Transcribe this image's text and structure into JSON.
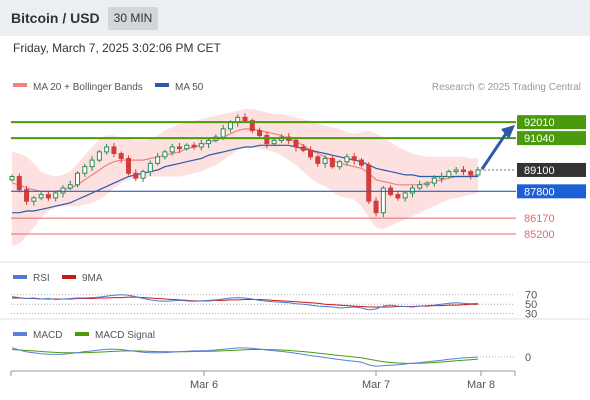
{
  "header": {
    "title": "Bitcoin / USD",
    "timeframe": "30 MIN"
  },
  "date_time": "Friday, March 7, 2025 3:02:06 PM CET",
  "legend": {
    "ma20": "MA 20 + Bollinger Bands",
    "ma50": "MA 50",
    "credit": "Research © 2025 Trading Central",
    "rsi": "RSI",
    "rsi_ma": "9MA",
    "macd": "MACD",
    "macd_signal": "MACD Signal"
  },
  "colors": {
    "resistance": "#4a9a0e",
    "pivot": "#1f5fd6",
    "support": "#e66b6b",
    "last_price": "#333333",
    "ma20": "#f08080",
    "ma50": "#2d5aa8",
    "bollinger": "#fde0e0",
    "candle_up": "#2e8b57",
    "candle_down": "#d23c3c",
    "rsi": "#4f78d0",
    "rsi_ma": "#c81818",
    "macd": "#5b80d8",
    "macd_signal": "#4a9a0e",
    "arrow": "#2d5aa8"
  },
  "chart_data": [
    {
      "type": "candlestick",
      "panel": "price",
      "y_unit": "USD",
      "ylim": [
        83500,
        93600
      ],
      "x_ticks": [
        "Mar 6",
        "Mar 7",
        "Mar 8"
      ],
      "levels": [
        {
          "label": "92010",
          "value": 92010,
          "kind": "resistance"
        },
        {
          "label": "91040",
          "value": 91040,
          "kind": "resistance"
        },
        {
          "label": "89100",
          "value": 89100,
          "kind": "last_price"
        },
        {
          "label": "87800",
          "value": 87800,
          "kind": "pivot"
        },
        {
          "label": "86170",
          "value": 86170,
          "kind": "support"
        },
        {
          "label": "85200",
          "value": 85200,
          "kind": "support"
        }
      ],
      "arrow": "up",
      "close": [
        88700,
        87900,
        87200,
        87400,
        87600,
        87400,
        87700,
        88000,
        88200,
        88900,
        89300,
        89700,
        90200,
        90500,
        90100,
        89800,
        88900,
        88600,
        89000,
        89500,
        89900,
        90200,
        90500,
        90400,
        90600,
        90500,
        90700,
        90900,
        91100,
        91600,
        92000,
        92300,
        92100,
        91500,
        91200,
        90700,
        90900,
        91100,
        90900,
        90500,
        90300,
        89900,
        89500,
        89800,
        89300,
        89600,
        89900,
        89700,
        89400,
        87200,
        86500,
        88000,
        87600,
        87400,
        87700,
        88000,
        88200,
        88300,
        88600,
        88700,
        89000,
        89100,
        89000,
        88800,
        89100
      ],
      "ma20": [
        88300,
        88200,
        88000,
        87900,
        87800,
        87800,
        87800,
        87900,
        88000,
        88200,
        88500,
        88800,
        89100,
        89400,
        89600,
        89700,
        89700,
        89700,
        89700,
        89800,
        89900,
        90000,
        90100,
        90200,
        90400,
        90500,
        90600,
        90800,
        90900,
        91100,
        91300,
        91500,
        91600,
        91600,
        91500,
        91400,
        91300,
        91200,
        91000,
        90800,
        90600,
        90300,
        90100,
        89900,
        89700,
        89500,
        89400,
        89300,
        89200,
        88900,
        88500,
        88400,
        88300,
        88200,
        88200,
        88200,
        88200,
        88300,
        88400,
        88500,
        88600,
        88700,
        88700,
        88700,
        88800
      ],
      "ma50": [
        86500,
        86500,
        86600,
        86600,
        86700,
        86800,
        86900,
        87000,
        87100,
        87300,
        87500,
        87700,
        87900,
        88100,
        88300,
        88500,
        88700,
        88800,
        88900,
        89000,
        89100,
        89300,
        89400,
        89500,
        89600,
        89700,
        89800,
        90000,
        90100,
        90200,
        90300,
        90400,
        90500,
        90500,
        90600,
        90600,
        90600,
        90600,
        90600,
        90500,
        90400,
        90300,
        90200,
        90100,
        90000,
        89900,
        89800,
        89700,
        89600,
        89400,
        89200,
        89100,
        89000,
        88900,
        88800,
        88800,
        88700,
        88700,
        88700,
        88700,
        88700,
        88700,
        88700,
        88700,
        88700
      ],
      "bollinger_upper": [
        90200,
        90100,
        89900,
        89500,
        89000,
        88800,
        88700,
        88800,
        89000,
        89500,
        90000,
        90500,
        91000,
        91200,
        91200,
        91100,
        91000,
        90900,
        90900,
        91000,
        91200,
        91500,
        91700,
        91900,
        92000,
        92100,
        92200,
        92300,
        92400,
        92500,
        92600,
        92700,
        92800,
        92800,
        92700,
        92600,
        92500,
        92500,
        92400,
        92300,
        92200,
        92100,
        91900,
        91800,
        91700,
        91600,
        91400,
        91300,
        91400,
        91500,
        91300,
        91100,
        90800,
        90500,
        90300,
        90100,
        90000,
        89900,
        89900,
        89900,
        89900,
        89900,
        89900,
        89800,
        89800
      ],
      "bollinger_lower": [
        84500,
        84600,
        85100,
        85600,
        86200,
        86600,
        86800,
        86900,
        86900,
        86900,
        87000,
        87100,
        87300,
        87600,
        88000,
        88300,
        88500,
        88600,
        88600,
        88700,
        88700,
        88700,
        88700,
        88700,
        88800,
        88900,
        89000,
        89200,
        89400,
        89700,
        90000,
        90300,
        90500,
        90500,
        90400,
        90300,
        90200,
        90000,
        89700,
        89400,
        89000,
        88600,
        88300,
        88100,
        87800,
        87500,
        87400,
        87300,
        86900,
        86200,
        85600,
        85500,
        85700,
        85900,
        86100,
        86300,
        86500,
        86700,
        86900,
        87100,
        87300,
        87400,
        87500,
        87600,
        87700
      ]
    },
    {
      "type": "line",
      "panel": "rsi",
      "ylim": [
        25,
        80
      ],
      "reference_levels": [
        70,
        50,
        30
      ],
      "series": [
        {
          "name": "RSI",
          "values": [
            66,
            64,
            62,
            63,
            61,
            62,
            60,
            61,
            62,
            63,
            63,
            64,
            65,
            67,
            69,
            70,
            69,
            66,
            62,
            59,
            57,
            56,
            57,
            58,
            57,
            56,
            57,
            58,
            59,
            61,
            63,
            64,
            63,
            61,
            58,
            56,
            55,
            54,
            53,
            51,
            50,
            48,
            46,
            45,
            44,
            42,
            43,
            44,
            42,
            38,
            40,
            46,
            48,
            46,
            45,
            44,
            46,
            47,
            48,
            50,
            52,
            53,
            52,
            51,
            52
          ]
        },
        {
          "name": "9MA",
          "values": [
            63,
            63,
            62,
            62,
            61,
            61,
            61,
            61,
            61,
            62,
            62,
            62,
            63,
            63,
            64,
            64,
            65,
            65,
            64,
            63,
            62,
            61,
            60,
            59,
            58,
            57,
            57,
            57,
            58,
            58,
            59,
            59,
            60,
            60,
            60,
            59,
            58,
            57,
            56,
            55,
            54,
            53,
            52,
            50,
            49,
            48,
            47,
            46,
            45,
            44,
            44,
            44,
            44,
            45,
            45,
            45,
            46,
            46,
            47,
            47,
            48,
            48,
            49,
            50,
            50
          ]
        }
      ]
    },
    {
      "type": "line",
      "panel": "macd",
      "ylim": [
        -300,
        300
      ],
      "reference_levels": [
        0
      ],
      "series": [
        {
          "name": "MACD",
          "values": [
            200,
            150,
            110,
            90,
            70,
            60,
            55,
            60,
            75,
            95,
            115,
            130,
            150,
            165,
            170,
            160,
            140,
            120,
            100,
            90,
            90,
            95,
            105,
            115,
            125,
            130,
            135,
            140,
            150,
            165,
            180,
            195,
            195,
            185,
            170,
            150,
            135,
            120,
            100,
            80,
            55,
            30,
            10,
            -10,
            -35,
            -55,
            -75,
            -90,
            -110,
            -170,
            -200,
            -185,
            -175,
            -165,
            -150,
            -135,
            -120,
            -100,
            -85,
            -70,
            -50,
            -35,
            -20,
            -10,
            0
          ]
        },
        {
          "name": "MACD Signal",
          "values": [
            160,
            150,
            140,
            130,
            118,
            108,
            98,
            92,
            90,
            90,
            93,
            98,
            105,
            113,
            121,
            128,
            131,
            130,
            126,
            121,
            116,
            113,
            112,
            112,
            114,
            117,
            120,
            123,
            127,
            133,
            140,
            148,
            156,
            161,
            163,
            161,
            156,
            149,
            140,
            129,
            116,
            101,
            84,
            67,
            49,
            31,
            15,
            -1,
            -17,
            -45,
            -75,
            -100,
            -115,
            -128,
            -135,
            -138,
            -135,
            -128,
            -118,
            -107,
            -95,
            -82,
            -69,
            -57,
            -46
          ]
        }
      ]
    }
  ]
}
